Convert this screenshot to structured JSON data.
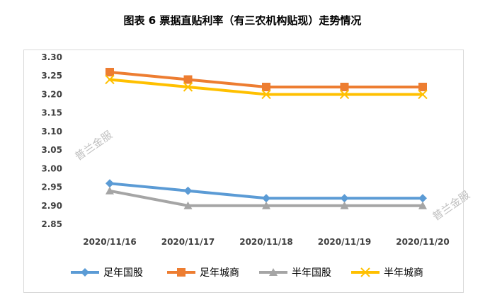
{
  "title": "图表 6  票据直贴利率（有三农机构贴现）走势情况",
  "watermarks": [
    "普兰金服",
    "普兰金服"
  ],
  "chart_data": {
    "type": "line",
    "title": "图表 6  票据直贴利率（有三农机构贴现）走势情况",
    "categories": [
      "2020/11/16",
      "2020/11/17",
      "2020/11/18",
      "2020/11/19",
      "2020/11/20"
    ],
    "y_ticks": [
      "3.30",
      "3.25",
      "3.20",
      "3.15",
      "3.10",
      "3.05",
      "3.00",
      "2.95",
      "2.90",
      "2.85"
    ],
    "ylim": [
      2.85,
      3.3
    ],
    "grid": false,
    "legend_position": "bottom",
    "series": [
      {
        "name": "足年国股",
        "values": [
          2.96,
          2.94,
          2.92,
          2.92,
          2.92
        ],
        "color": "#5B9BD5",
        "marker": "diamond"
      },
      {
        "name": "足年城商",
        "values": [
          3.26,
          3.24,
          3.22,
          3.22,
          3.22
        ],
        "color": "#ED7D31",
        "marker": "square"
      },
      {
        "name": "半年国股",
        "values": [
          2.94,
          2.9,
          2.9,
          2.9,
          2.9
        ],
        "color": "#A5A5A5",
        "marker": "triangle"
      },
      {
        "name": "半年城商",
        "values": [
          3.24,
          3.22,
          3.2,
          3.2,
          3.2
        ],
        "color": "#FFC000",
        "marker": "x"
      }
    ]
  }
}
